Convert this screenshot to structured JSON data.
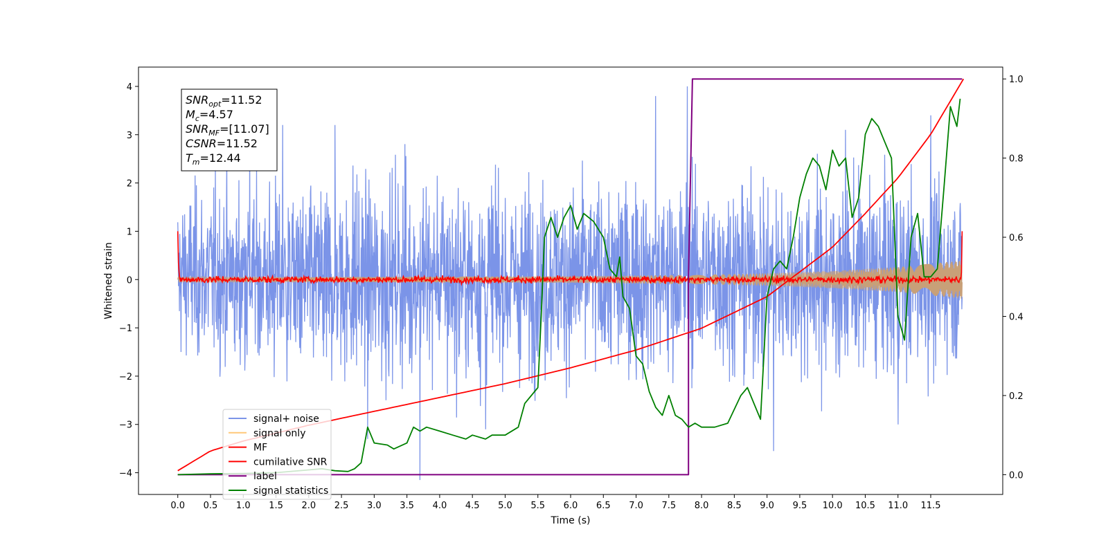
{
  "chart_data": {
    "type": "line",
    "xlabel": "Time (s)",
    "ylabel": "Whitened strain",
    "xlim": [
      -0.6,
      12.6
    ],
    "ylim": [
      -4.45,
      4.4
    ],
    "y2lim": [
      -0.05,
      1.03
    ],
    "xticks": [
      "0.0",
      "0.5",
      "1.0",
      "1.5",
      "2.0",
      "2.5",
      "3.0",
      "3.5",
      "4.0",
      "4.5",
      "5.0",
      "5.5",
      "6.0",
      "6.5",
      "7.0",
      "7.5",
      "8.0",
      "8.5",
      "9.0",
      "9.5",
      "10.0",
      "10.5",
      "11.0",
      "11.5"
    ],
    "yticks": [
      "4",
      "3",
      "2",
      "1",
      "0",
      "−1",
      "−2",
      "−3",
      "−4"
    ],
    "y2ticks": [
      "1.0",
      "0.8",
      "0.6",
      "0.4",
      "0.2",
      "0.0"
    ],
    "info_box": [
      {
        "main": "SNR",
        "sub": "opt",
        "value": "=11.52"
      },
      {
        "main": "M",
        "sub": "c",
        "value": "=4.57"
      },
      {
        "main": "SNR",
        "sub": "MF",
        "value": "=[11.07]"
      },
      {
        "main": "CSNR",
        "sub": "",
        "value": "=11.52"
      },
      {
        "main": "T",
        "sub": "m",
        "value": "=12.44"
      }
    ],
    "legend": {
      "placement": "lower-left",
      "entries": [
        {
          "label": "signal+ noise",
          "color": "#7b94e8"
        },
        {
          "label": "signal only",
          "color": "#ffc878"
        },
        {
          "label": "MF",
          "color": "#ff0000"
        },
        {
          "label": "cumilative SNR",
          "color": "#ff0000"
        },
        {
          "label": "label",
          "color": "#800080"
        },
        {
          "label": "signal statistics",
          "color": "#008000"
        }
      ]
    },
    "series": [
      {
        "name": "signal+ noise",
        "axis": "left",
        "color": "#7b94e8",
        "envelope": {
          "t": [
            0,
            1,
            2,
            3,
            4,
            5,
            6,
            7,
            8,
            9,
            10,
            11,
            12
          ],
          "upper": [
            2.2,
            2.5,
            2.3,
            2.5,
            2.6,
            2.4,
            2.5,
            2.5,
            2.6,
            2.5,
            2.4,
            2.5,
            2.3
          ],
          "lower": [
            -2.0,
            -2.3,
            -2.4,
            -2.5,
            -2.5,
            -2.5,
            -2.4,
            -2.4,
            -2.3,
            -2.4,
            -2.4,
            -2.4,
            -2.2
          ]
        },
        "spikes": [
          {
            "t": 1.1,
            "y": 3.0
          },
          {
            "t": 1.6,
            "y": 3.2
          },
          {
            "t": 2.4,
            "y": 3.2
          },
          {
            "t": 3.7,
            "y": -4.15
          },
          {
            "t": 4.7,
            "y": -3.1
          },
          {
            "t": 7.3,
            "y": 3.8
          },
          {
            "t": 7.78,
            "y": 4.0
          },
          {
            "t": 9.1,
            "y": -3.55
          },
          {
            "t": 10.2,
            "y": 3.1
          },
          {
            "t": 11.5,
            "y": 3.4
          },
          {
            "t": 11.0,
            "y": -3.0
          },
          {
            "t": 2.9,
            "y": -3.3
          }
        ]
      },
      {
        "name": "signal only",
        "axis": "left",
        "color": "#ffc878",
        "band_t": [
          0,
          2,
          4,
          6,
          8,
          9,
          10,
          11,
          12
        ],
        "band_amp": [
          0.05,
          0.05,
          0.06,
          0.07,
          0.1,
          0.13,
          0.18,
          0.26,
          0.4
        ]
      },
      {
        "name": "MF",
        "axis": "left",
        "color": "#ff0000",
        "noise_amp": 0.08,
        "start_value": 1.0,
        "end_value": 1.0
      },
      {
        "name": "cumilative SNR",
        "axis": "right",
        "color": "#ff0000",
        "x": [
          0,
          0.5,
          1,
          2,
          3,
          4,
          5,
          6,
          7,
          8,
          9,
          10,
          10.5,
          11,
          11.5,
          12.0
        ],
        "y": [
          0.01,
          0.06,
          0.085,
          0.125,
          0.16,
          0.195,
          0.23,
          0.27,
          0.315,
          0.37,
          0.45,
          0.575,
          0.66,
          0.75,
          0.86,
          1.0
        ]
      },
      {
        "name": "label",
        "axis": "right",
        "color": "#800080",
        "x": [
          0,
          7.8,
          7.8,
          7.86,
          11.98
        ],
        "y": [
          0,
          0,
          0.5,
          1,
          1
        ]
      },
      {
        "name": "signal statistics",
        "axis": "right",
        "color": "#008000",
        "x": [
          0,
          0.5,
          1.0,
          1.5,
          2.0,
          2.2,
          2.4,
          2.6,
          2.7,
          2.8,
          2.9,
          3.0,
          3.2,
          3.3,
          3.5,
          3.6,
          3.7,
          3.8,
          4.0,
          4.2,
          4.4,
          4.5,
          4.7,
          4.8,
          5.0,
          5.2,
          5.3,
          5.5,
          5.55,
          5.6,
          5.7,
          5.8,
          5.9,
          6.0,
          6.1,
          6.2,
          6.35,
          6.5,
          6.6,
          6.7,
          6.75,
          6.8,
          6.9,
          7.0,
          7.1,
          7.2,
          7.3,
          7.4,
          7.5,
          7.6,
          7.7,
          7.8,
          7.9,
          8.0,
          8.2,
          8.4,
          8.6,
          8.7,
          8.8,
          8.9,
          9.0,
          9.1,
          9.2,
          9.3,
          9.4,
          9.5,
          9.6,
          9.7,
          9.8,
          9.9,
          10.0,
          10.1,
          10.2,
          10.3,
          10.4,
          10.5,
          10.6,
          10.7,
          10.8,
          10.9,
          11.0,
          11.1,
          11.2,
          11.3,
          11.4,
          11.5,
          11.6,
          11.7,
          11.8,
          11.9,
          11.95
        ],
        "y": [
          0,
          0.002,
          0.003,
          0.005,
          0.012,
          0.015,
          0.01,
          0.008,
          0.015,
          0.03,
          0.12,
          0.08,
          0.075,
          0.065,
          0.08,
          0.12,
          0.11,
          0.12,
          0.11,
          0.1,
          0.09,
          0.1,
          0.09,
          0.1,
          0.1,
          0.12,
          0.18,
          0.22,
          0.4,
          0.6,
          0.65,
          0.6,
          0.65,
          0.68,
          0.62,
          0.66,
          0.64,
          0.6,
          0.52,
          0.5,
          0.55,
          0.45,
          0.42,
          0.3,
          0.28,
          0.21,
          0.17,
          0.15,
          0.2,
          0.15,
          0.14,
          0.12,
          0.13,
          0.12,
          0.12,
          0.13,
          0.2,
          0.22,
          0.18,
          0.14,
          0.45,
          0.52,
          0.54,
          0.52,
          0.6,
          0.7,
          0.76,
          0.8,
          0.78,
          0.72,
          0.82,
          0.78,
          0.8,
          0.65,
          0.7,
          0.86,
          0.9,
          0.88,
          0.84,
          0.8,
          0.4,
          0.34,
          0.6,
          0.66,
          0.5,
          0.5,
          0.52,
          0.72,
          0.93,
          0.88,
          0.95
        ]
      }
    ]
  }
}
